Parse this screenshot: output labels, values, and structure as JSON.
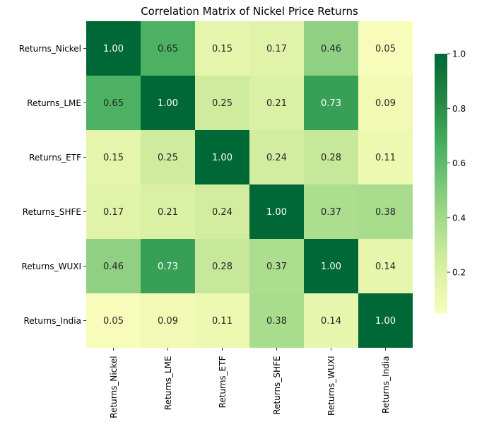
{
  "chart_data": {
    "type": "heatmap",
    "title": "Correlation Matrix of Nickel Price Returns",
    "x_labels": [
      "Returns_Nickel",
      "Returns_LME",
      "Returns_ETF",
      "Returns_SHFE",
      "Returns_WUXI",
      "Returns_India"
    ],
    "y_labels": [
      "Returns_Nickel",
      "Returns_LME",
      "Returns_ETF",
      "Returns_SHFE",
      "Returns_WUXI",
      "Returns_India"
    ],
    "values": [
      [
        1.0,
        0.65,
        0.15,
        0.17,
        0.46,
        0.05
      ],
      [
        0.65,
        1.0,
        0.25,
        0.21,
        0.73,
        0.09
      ],
      [
        0.15,
        0.25,
        1.0,
        0.24,
        0.28,
        0.11
      ],
      [
        0.17,
        0.21,
        0.24,
        1.0,
        0.37,
        0.38
      ],
      [
        0.46,
        0.73,
        0.28,
        0.37,
        1.0,
        0.14
      ],
      [
        0.05,
        0.09,
        0.11,
        0.38,
        0.14,
        1.0
      ]
    ],
    "value_format": "0.00",
    "colormap": "YlGn",
    "vmin": 0.05,
    "vmax": 1.0,
    "colorbar": {
      "ticks": [
        0.2,
        0.4,
        0.6,
        0.8,
        1.0
      ],
      "tick_labels": [
        "0.2",
        "0.4",
        "0.6",
        "0.8",
        "1.0"
      ],
      "placement": "right"
    }
  }
}
